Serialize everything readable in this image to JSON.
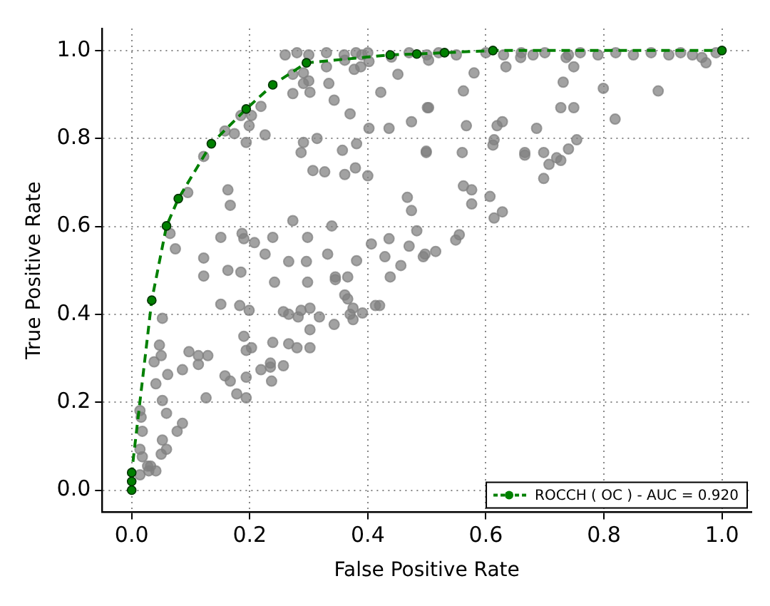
{
  "chart_data": {
    "type": "scatter",
    "xlabel": "False Positive Rate",
    "ylabel": "True Positive Rate",
    "xlim": [
      -0.05,
      1.05
    ],
    "ylim": [
      -0.05,
      1.05
    ],
    "xticks": [
      {
        "value": 0,
        "label": "0.0"
      },
      0.2,
      0.4,
      0.6,
      0.8,
      {
        "value": 1,
        "label": "1.0"
      }
    ],
    "yticks": [
      {
        "value": 0,
        "label": "0.0"
      },
      0.2,
      0.4,
      0.6,
      0.8,
      {
        "value": 1,
        "label": "1.0"
      }
    ],
    "grid": true,
    "legend": "bottom right",
    "series": [
      {
        "type": "scatter",
        "color": "#808080",
        "marker": "circle",
        "x": [
          0.26,
          0.28,
          0.3,
          0.33,
          0.36,
          0.38,
          0.39,
          0.4,
          0.44,
          0.47,
          0.5,
          0.52,
          0.55,
          0.6,
          0.63,
          0.66,
          0.68,
          0.7,
          0.74,
          0.76,
          0.79,
          0.82,
          0.85,
          0.88,
          0.91,
          0.93,
          0.95,
          0.99,
          0.503,
          0.58,
          0.562,
          0.503,
          0.567,
          0.499,
          0.56,
          0.562,
          0.576,
          0.576,
          0.549,
          0.555,
          0.515,
          0.494,
          0.634,
          0.659,
          0.731,
          0.749,
          0.736,
          0.727,
          0.749,
          0.799,
          0.819,
          0.892,
          0.966,
          0.973,
          0.619,
          0.628,
          0.614,
          0.612,
          0.686,
          0.666,
          0.666,
          0.698,
          0.707,
          0.72,
          0.727,
          0.74,
          0.754,
          0.698,
          0.607,
          0.614,
          0.628,
          0.33,
          0.361,
          0.377,
          0.388,
          0.402,
          0.291,
          0.3,
          0.291,
          0.273,
          0.273,
          0.302,
          0.334,
          0.343,
          0.37,
          0.402,
          0.436,
          0.422,
          0.451,
          0.474,
          0.499,
          0.219,
          0.226,
          0.199,
          0.203,
          0.185,
          0.174,
          0.158,
          0.194,
          0.122,
          0.095,
          0.163,
          0.167,
          0.291,
          0.287,
          0.314,
          0.357,
          0.381,
          0.307,
          0.327,
          0.361,
          0.379,
          0.4,
          0.273,
          0.339,
          0.065,
          0.074,
          0.122,
          0.122,
          0.151,
          0.163,
          0.187,
          0.19,
          0.185,
          0.208,
          0.226,
          0.239,
          0.266,
          0.296,
          0.298,
          0.332,
          0.345,
          0.381,
          0.406,
          0.429,
          0.436,
          0.438,
          0.456,
          0.47,
          0.483,
          0.467,
          0.474,
          0.501,
          0.497,
          0.052,
          0.047,
          0.05,
          0.038,
          0.061,
          0.041,
          0.052,
          0.059,
          0.077,
          0.086,
          0.052,
          0.059,
          0.05,
          0.018,
          0.014,
          0.018,
          0.016,
          0.014,
          0.027,
          0.032,
          0.029,
          0.041,
          0.014,
          0.097,
          0.086,
          0.113,
          0.113,
          0.129,
          0.126,
          0.151,
          0.183,
          0.199,
          0.19,
          0.194,
          0.203,
          0.158,
          0.167,
          0.178,
          0.194,
          0.194,
          0.219,
          0.235,
          0.235,
          0.237,
          0.257,
          0.239,
          0.266,
          0.28,
          0.302,
          0.302,
          0.257,
          0.266,
          0.282,
          0.287,
          0.302,
          0.318,
          0.343,
          0.345,
          0.366,
          0.361,
          0.366,
          0.37,
          0.375,
          0.375,
          0.391,
          0.413,
          0.42,
          0.298,
          0.242
        ],
        "values": [
          0.99,
          0.995,
          0.99,
          0.995,
          0.99,
          0.995,
          0.99,
          0.995,
          0.985,
          0.995,
          0.99,
          0.995,
          0.99,
          0.995,
          0.99,
          0.995,
          0.99,
          0.995,
          0.99,
          0.995,
          0.99,
          0.995,
          0.99,
          0.995,
          0.99,
          0.995,
          0.99,
          0.995,
          0.978,
          0.949,
          0.908,
          0.87,
          0.829,
          0.768,
          0.768,
          0.692,
          0.683,
          0.651,
          0.569,
          0.581,
          0.543,
          0.531,
          0.963,
          0.984,
          0.928,
          0.963,
          0.984,
          0.87,
          0.87,
          0.914,
          0.844,
          0.908,
          0.984,
          0.972,
          0.829,
          0.838,
          0.797,
          0.785,
          0.823,
          0.768,
          0.762,
          0.768,
          0.741,
          0.756,
          0.75,
          0.776,
          0.797,
          0.709,
          0.668,
          0.619,
          0.633,
          0.963,
          0.978,
          0.957,
          0.963,
          0.975,
          0.949,
          0.931,
          0.925,
          0.946,
          0.902,
          0.905,
          0.925,
          0.887,
          0.856,
          0.823,
          0.823,
          0.905,
          0.946,
          0.838,
          0.771,
          0.873,
          0.808,
          0.829,
          0.852,
          0.852,
          0.811,
          0.817,
          0.791,
          0.759,
          0.677,
          0.683,
          0.648,
          0.791,
          0.768,
          0.8,
          0.773,
          0.788,
          0.727,
          0.724,
          0.718,
          0.733,
          0.715,
          0.613,
          0.601,
          0.584,
          0.549,
          0.528,
          0.487,
          0.575,
          0.5,
          0.584,
          0.572,
          0.496,
          0.563,
          0.537,
          0.575,
          0.52,
          0.52,
          0.575,
          0.537,
          0.485,
          0.522,
          0.56,
          0.531,
          0.572,
          0.485,
          0.511,
          0.555,
          0.59,
          0.666,
          0.636,
          0.87,
          0.537,
          0.391,
          0.33,
          0.306,
          0.292,
          0.263,
          0.242,
          0.204,
          0.175,
          0.134,
          0.152,
          0.114,
          0.093,
          0.082,
          0.076,
          0.093,
          0.134,
          0.166,
          0.181,
          0.055,
          0.055,
          0.044,
          0.044,
          0.035,
          0.315,
          0.274,
          0.306,
          0.286,
          0.306,
          0.21,
          0.423,
          0.42,
          0.409,
          0.35,
          0.318,
          0.324,
          0.26,
          0.248,
          0.219,
          0.257,
          0.21,
          0.274,
          0.28,
          0.289,
          0.248,
          0.283,
          0.336,
          0.333,
          0.324,
          0.324,
          0.365,
          0.406,
          0.4,
          0.394,
          0.409,
          0.414,
          0.394,
          0.377,
          0.479,
          0.485,
          0.444,
          0.435,
          0.4,
          0.414,
          0.388,
          0.403,
          0.42,
          0.42,
          0.473,
          0.473
        ]
      },
      {
        "type": "line",
        "name": "ROCCH ( OC ) - AUC = 0.920",
        "color": "#008000",
        "marker": "circle",
        "line_style": "dashed",
        "x": [
          0,
          0,
          0,
          0.034,
          0.059,
          0.079,
          0.135,
          0.194,
          0.239,
          0.296,
          0.438,
          0.483,
          0.53,
          0.612,
          1.0
        ],
        "values": [
          0,
          0.02,
          0.04,
          0.432,
          0.601,
          0.663,
          0.788,
          0.867,
          0.922,
          0.972,
          0.99,
          0.992,
          0.995,
          1.0,
          1.0
        ]
      }
    ]
  }
}
